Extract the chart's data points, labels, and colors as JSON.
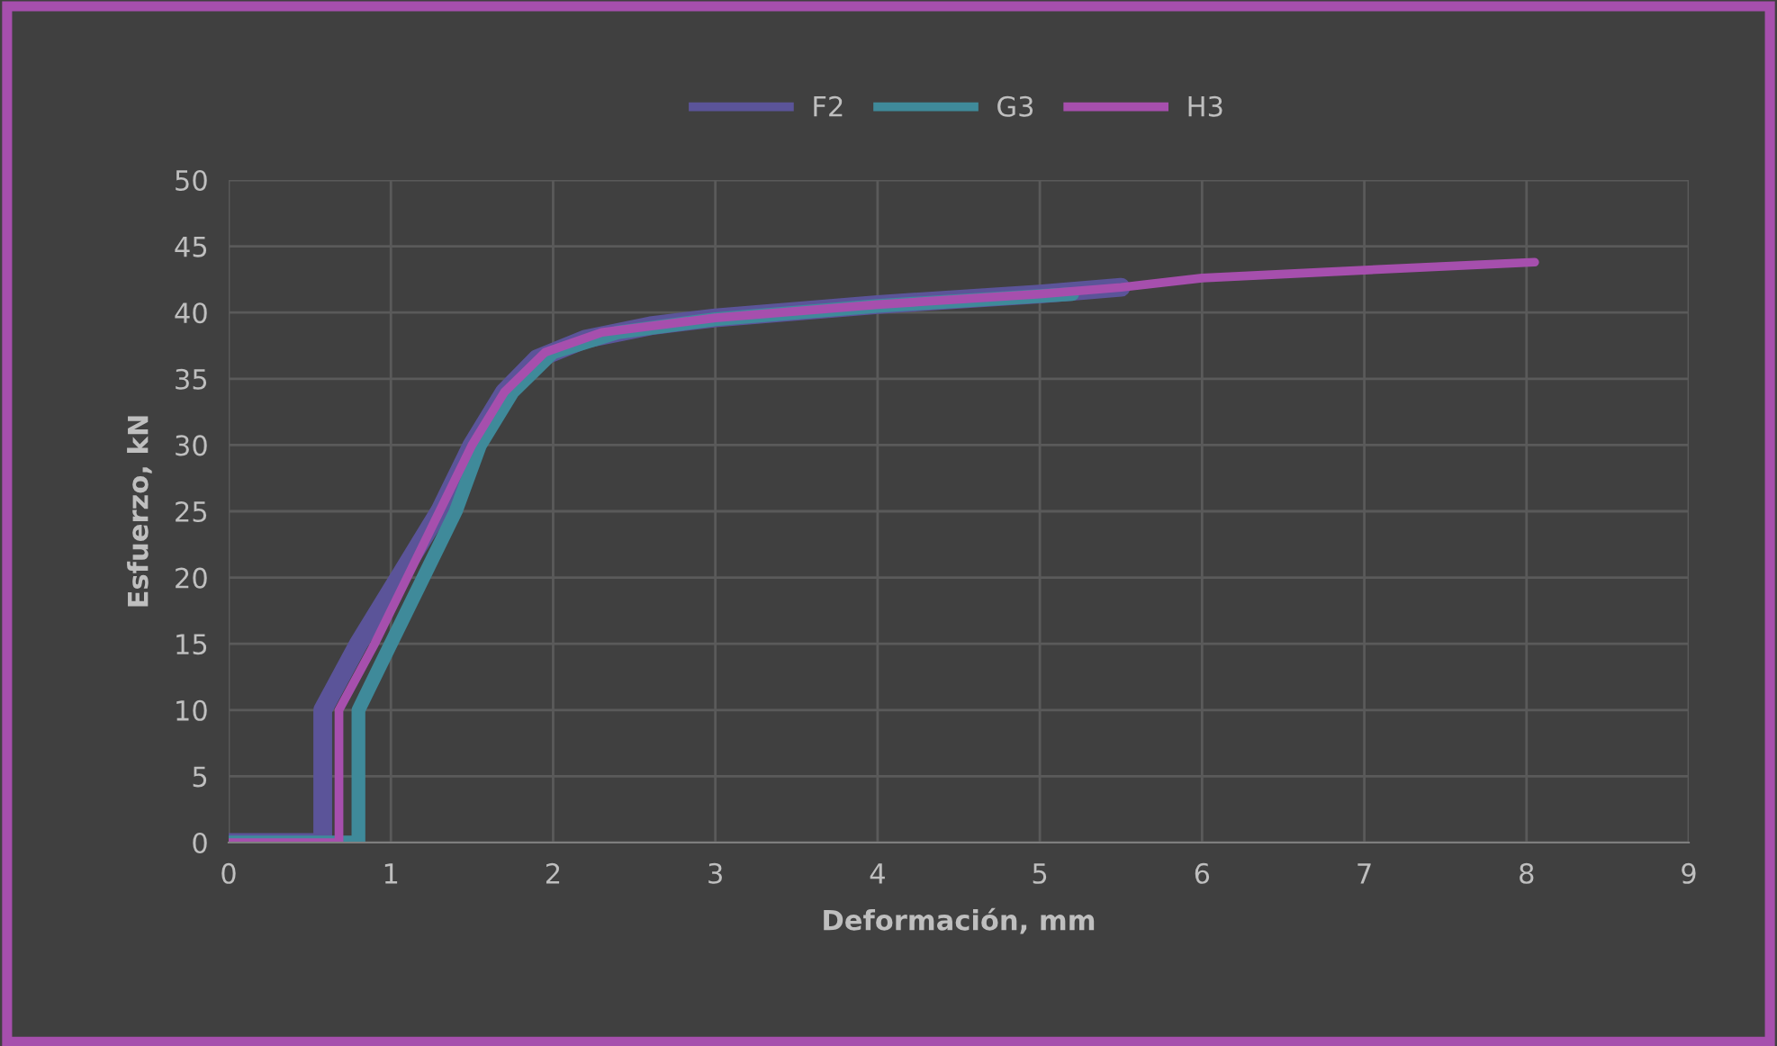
{
  "chart_data": {
    "type": "line",
    "xlabel": "Deformación, mm",
    "ylabel": "Esfuerzo, kN",
    "xlim": [
      0,
      9
    ],
    "xticks": [
      0,
      1,
      2,
      3,
      4,
      5,
      6,
      7,
      8,
      9
    ],
    "ylim": [
      0,
      50
    ],
    "yticks": [
      0,
      5,
      10,
      15,
      20,
      25,
      30,
      35,
      40,
      45,
      50
    ],
    "grid": true,
    "legend": "top",
    "marker": "none",
    "line_style": "solid",
    "series": [
      {
        "name": "F2",
        "color": "#5b5499",
        "x": [
          0,
          0.58,
          0.58,
          0.8,
          1.05,
          1.3,
          1.5,
          1.7,
          1.9,
          2.2,
          2.6,
          3,
          4,
          5,
          5.5
        ],
        "values": [
          0,
          0,
          10,
          15,
          20,
          25,
          30,
          34,
          36.5,
          38,
          39,
          39.6,
          40.6,
          41.4,
          41.9
        ]
      },
      {
        "name": "G3",
        "color": "#3f8a9a",
        "x": [
          0,
          0.8,
          0.8,
          1.0,
          1.2,
          1.4,
          1.55,
          1.75,
          2.0,
          2.4,
          3,
          4,
          5.2
        ],
        "values": [
          0,
          0,
          10,
          15,
          20,
          25,
          30,
          34,
          37,
          38.5,
          39.5,
          40.5,
          41.4
        ]
      },
      {
        "name": "H3",
        "color": "#a64fad",
        "x": [
          0,
          0.68,
          0.68,
          0.9,
          1.1,
          1.3,
          1.5,
          1.7,
          1.95,
          2.3,
          3,
          4,
          5,
          5.5,
          6,
          7,
          8.05
        ],
        "values": [
          0,
          0,
          10,
          15,
          20,
          25,
          30,
          34,
          37,
          38.5,
          39.6,
          40.6,
          41.4,
          41.9,
          42.6,
          43.2,
          43.8
        ]
      }
    ]
  }
}
